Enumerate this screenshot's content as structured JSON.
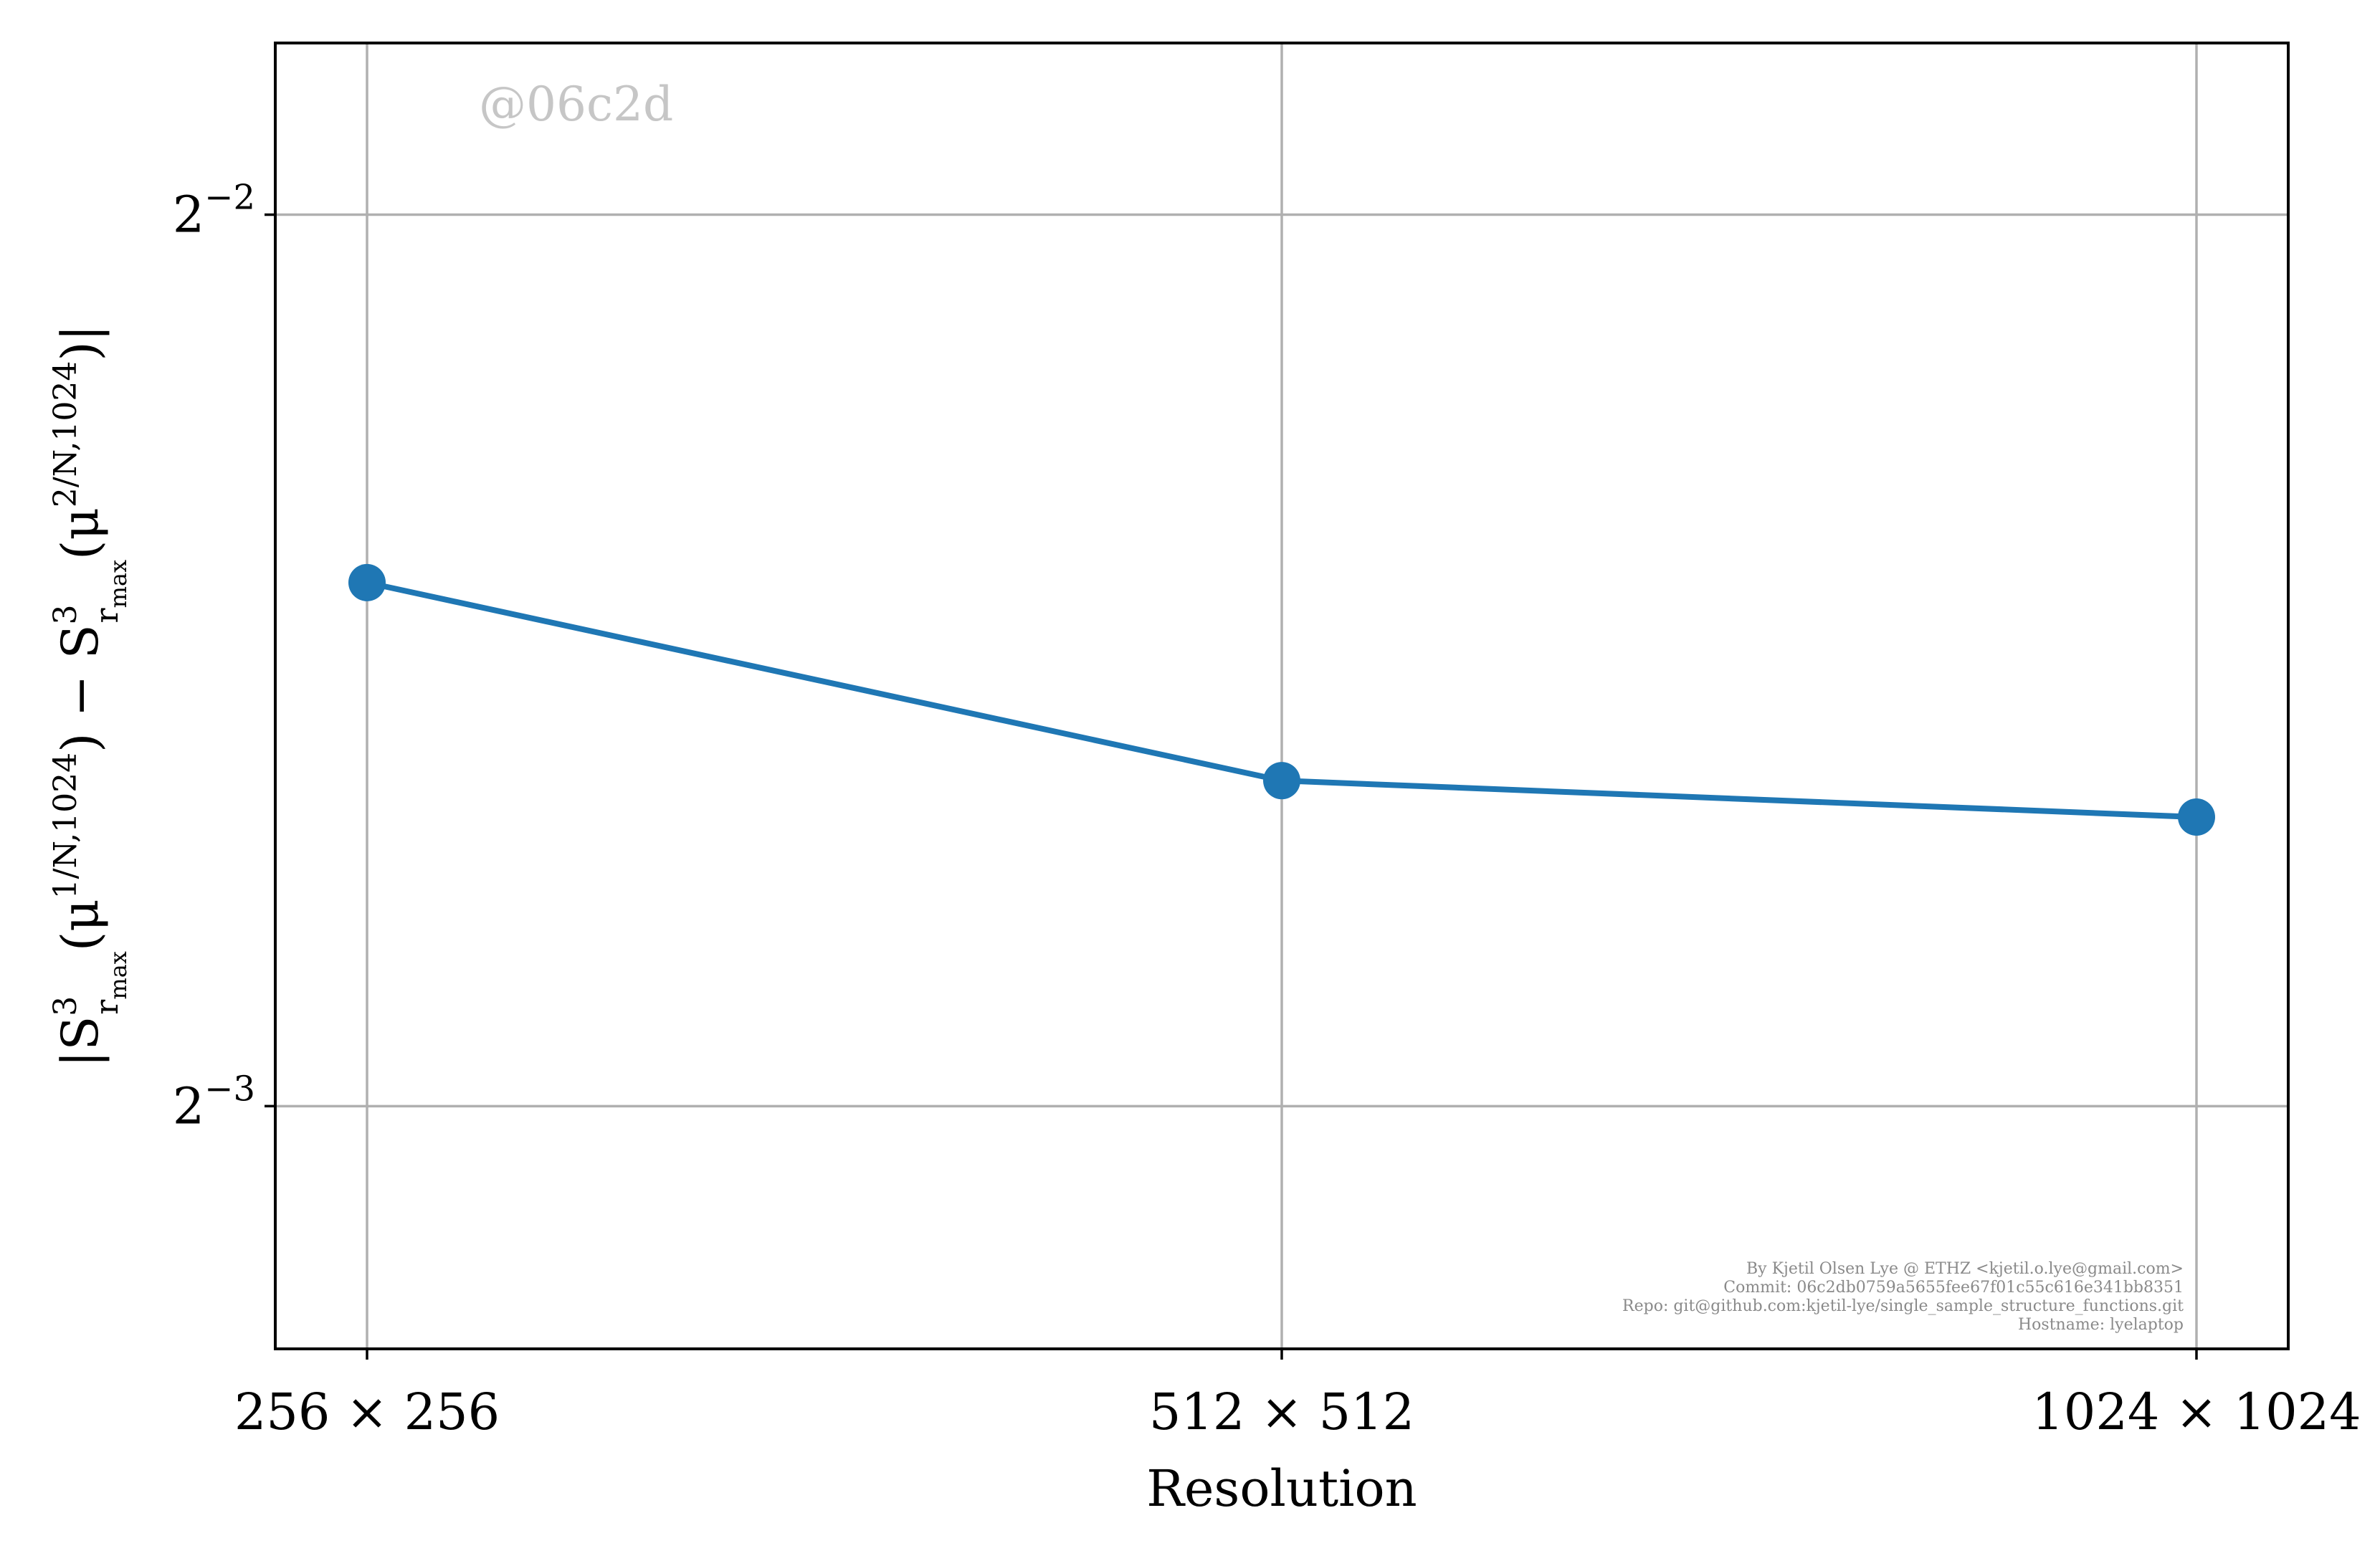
{
  "chart_data": {
    "type": "line",
    "xlabel": "Resolution",
    "ylabel": "|S³_{r_max}(μ^{1/N,1024}) − S³_{r_max}(μ^{2/N,1024})|",
    "ylabel_parts": {
      "p1": "|S",
      "p1_sup": "3",
      "p1_sub": "r",
      "p1_subsub": "max",
      "p2": "(μ",
      "p2_sup": "1/N,1024",
      "p3": ") − S",
      "p3_sup": "3",
      "p3_sub": "r",
      "p3_subsub": "max",
      "p4": "(μ",
      "p4_sup": "2/N,1024",
      "p5": ")|"
    },
    "y_scale": "log2",
    "ylim": [
      0.1035,
      0.2857
    ],
    "categories": [
      "256 × 256",
      "512 × 512",
      "1024 × 1024"
    ],
    "y_ticks": [
      {
        "value": 0.25,
        "base": "2",
        "exp": "−2"
      },
      {
        "value": 0.125,
        "base": "2",
        "exp": "−3"
      }
    ],
    "series": [
      {
        "color": "#1f77b4",
        "values": [
          0.1878,
          0.161,
          0.1565
        ]
      }
    ],
    "grid": true,
    "watermark": "@06c2d",
    "credits": [
      "By Kjetil Olsen Lye @ ETHZ <kjetil.o.lye@gmail.com>",
      "Commit: 06c2db0759a5655fee67f01c55c616e341bb8351",
      "Repo: git@github.com:kjetil-lye/single_sample_structure_functions.git",
      "Hostname: lyelaptop"
    ]
  }
}
